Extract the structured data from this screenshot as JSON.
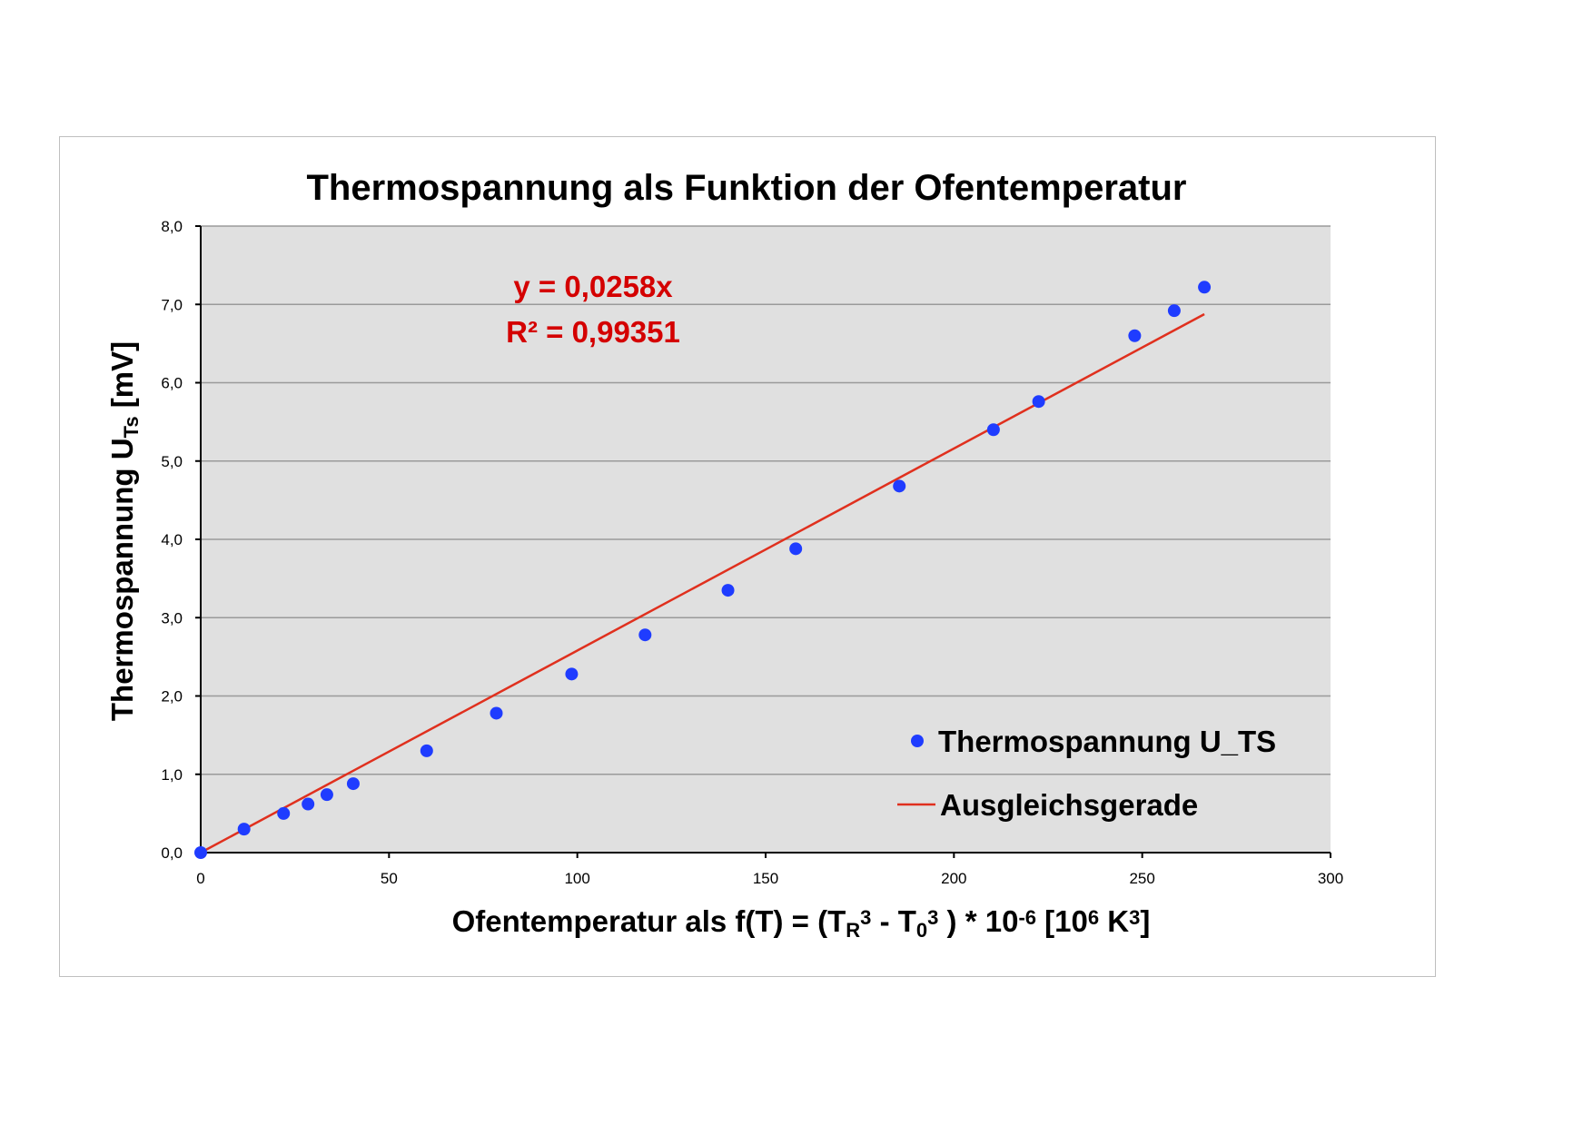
{
  "chart_data": {
    "type": "scatter",
    "title": "Thermospannung als Funktion der Ofentemperatur",
    "xlabel": {
      "parts": [
        "Ofentemperatur als f(T) = (T",
        "R",
        "3",
        " - T",
        "0",
        "3",
        " ) * 10",
        "-6",
        " [10",
        "6",
        " K",
        "3",
        "]"
      ]
    },
    "ylabel": {
      "parts": [
        "Thermospannung U",
        "Ts",
        "  [mV]"
      ]
    },
    "xlim": [
      0,
      300
    ],
    "ylim": [
      0,
      8
    ],
    "xticks": [
      0,
      50,
      100,
      150,
      200,
      250,
      300
    ],
    "xtick_labels": [
      "0",
      "50",
      "100",
      "150",
      "200",
      "250",
      "300"
    ],
    "yticks": [
      0,
      1,
      2,
      3,
      4,
      5,
      6,
      7,
      8
    ],
    "ytick_labels": [
      "0,0",
      "1,0",
      "2,0",
      "3,0",
      "4,0",
      "5,0",
      "6,0",
      "7,0",
      "8,0"
    ],
    "grid": "horizontal",
    "legend_position": "bottom-right",
    "series": [
      {
        "name": "Thermospannung U_TS",
        "kind": "scatter",
        "color": "#1f3cff",
        "x": [
          0,
          11.5,
          22,
          28.5,
          33.5,
          40.5,
          60,
          78.5,
          98.5,
          118,
          140,
          158,
          185.5,
          210.5,
          222.5,
          248,
          258.5,
          266.5
        ],
        "y": [
          0.0,
          0.3,
          0.5,
          0.62,
          0.74,
          0.88,
          1.3,
          1.78,
          2.28,
          2.78,
          3.35,
          3.88,
          4.68,
          5.4,
          5.76,
          6.6,
          6.92,
          7.22
        ]
      },
      {
        "name": "Ausgleichsgerade",
        "kind": "line",
        "color": "#e0301e",
        "slope": 0.0258,
        "x": [
          0,
          266.5
        ],
        "y": [
          0,
          6.8757
        ]
      }
    ],
    "annotations": {
      "equation": "y = 0,0258x",
      "r_squared": "R² = 0,99351",
      "color": "#d40000"
    },
    "colors": {
      "plot_background": "#e0e0e0",
      "gridline": "#9a9a9a"
    }
  }
}
